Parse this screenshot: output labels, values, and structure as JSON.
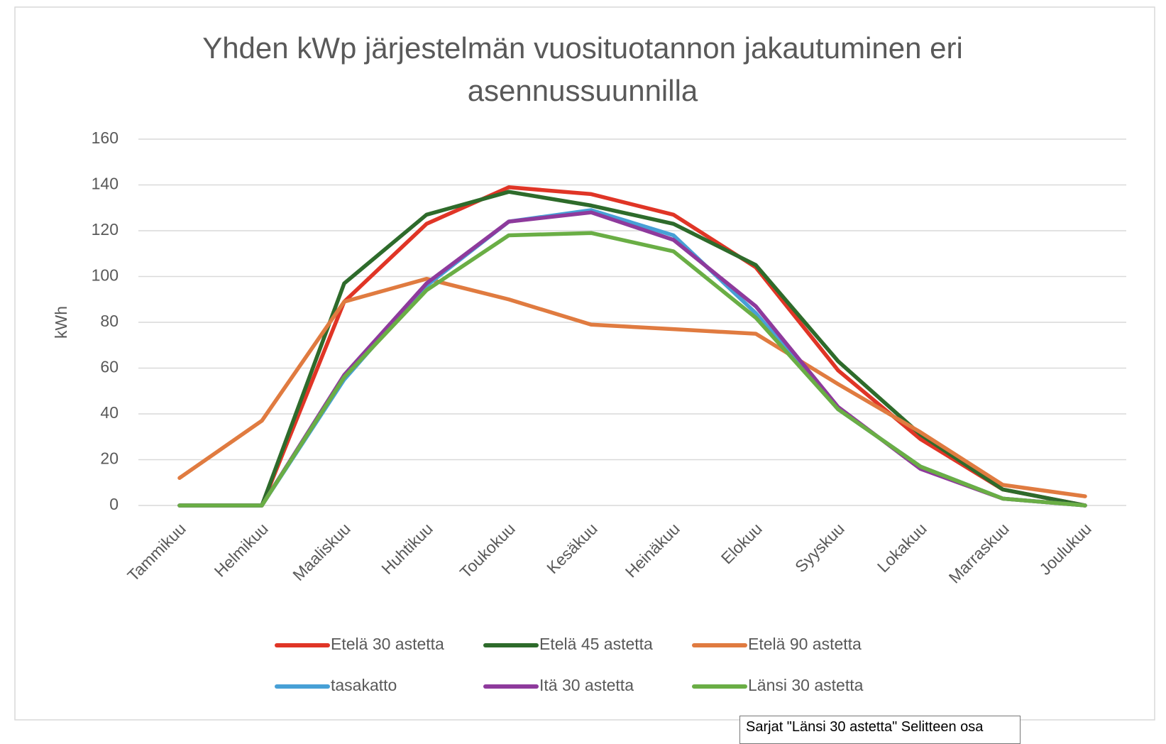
{
  "chart_data": {
    "type": "line",
    "title": "Yhden kWp järjestelmän vuosituotannon jakautuminen eri asennussuunnilla",
    "y_label": "kWh",
    "categories": [
      "Tammikuu",
      "Helmikuu",
      "Maaliskuu",
      "Huhtikuu",
      "Toukokuu",
      "Kesäkuu",
      "Heinäkuu",
      "Elokuu",
      "Syyskuu",
      "Lokakuu",
      "Marraskuu",
      "Joulukuu"
    ],
    "series": [
      {
        "name": "Etelä 30 astetta",
        "color": "#e03526",
        "values": [
          0,
          0,
          89,
          123,
          139,
          136,
          127,
          104,
          59,
          29,
          7,
          0
        ]
      },
      {
        "name": "Etelä 45 astetta",
        "color": "#2e6b2b",
        "values": [
          0,
          0,
          97,
          127,
          137,
          131,
          123,
          105,
          63,
          31,
          7,
          0
        ]
      },
      {
        "name": "Etelä 90 astetta",
        "color": "#e07b40",
        "values": [
          12,
          37,
          89,
          99,
          90,
          79,
          77,
          75,
          53,
          32,
          9,
          4
        ]
      },
      {
        "name": "tasakatto",
        "color": "#47a0d6",
        "values": [
          0,
          0,
          55,
          96,
          124,
          129,
          118,
          84,
          42,
          17,
          3,
          0
        ]
      },
      {
        "name": "Itä 30 astetta",
        "color": "#8e3a9c",
        "values": [
          0,
          0,
          57,
          97,
          124,
          128,
          116,
          87,
          43,
          16,
          3,
          0
        ]
      },
      {
        "name": "Länsi 30 astetta",
        "color": "#6aae45",
        "values": [
          0,
          0,
          56,
          94,
          118,
          119,
          111,
          82,
          42,
          17,
          3,
          0
        ]
      }
    ],
    "ylim": [
      0,
      160
    ],
    "yticks": [
      0,
      20,
      40,
      60,
      80,
      100,
      120,
      140,
      160
    ],
    "grid": true,
    "legend": "bottom",
    "tooltip": "Sarjat \"Länsi 30 astetta\" Selitteen osa"
  }
}
